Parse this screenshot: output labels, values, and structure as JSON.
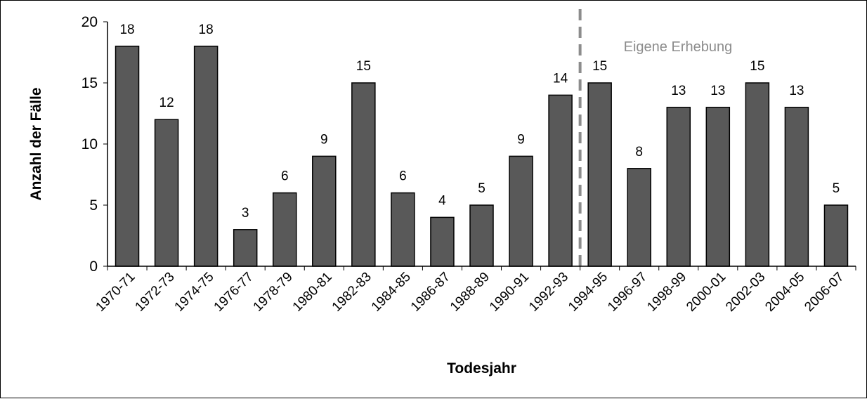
{
  "chart_data": {
    "type": "bar",
    "categories": [
      "1970-71",
      "1972-73",
      "1974-75",
      "1976-77",
      "1978-79",
      "1980-81",
      "1982-83",
      "1984-85",
      "1986-87",
      "1988-89",
      "1990-91",
      "1992-93",
      "1994-95",
      "1996-97",
      "1998-99",
      "2000-01",
      "2002-03",
      "2004-05",
      "2006-07"
    ],
    "values": [
      18,
      12,
      18,
      3,
      6,
      9,
      15,
      6,
      4,
      5,
      9,
      14,
      15,
      8,
      13,
      13,
      15,
      13,
      5
    ],
    "title": "",
    "xlabel": "Todesjahr",
    "ylabel": "Anzahl der Fälle",
    "ylim": [
      0,
      20
    ],
    "yticks": [
      0,
      5,
      10,
      15,
      20
    ],
    "grid": false,
    "bar_color": "#595959",
    "annotation": {
      "text": "Eigene Erhebung",
      "divider_after_category": "1992-93",
      "color": "#8c8c8c"
    }
  }
}
